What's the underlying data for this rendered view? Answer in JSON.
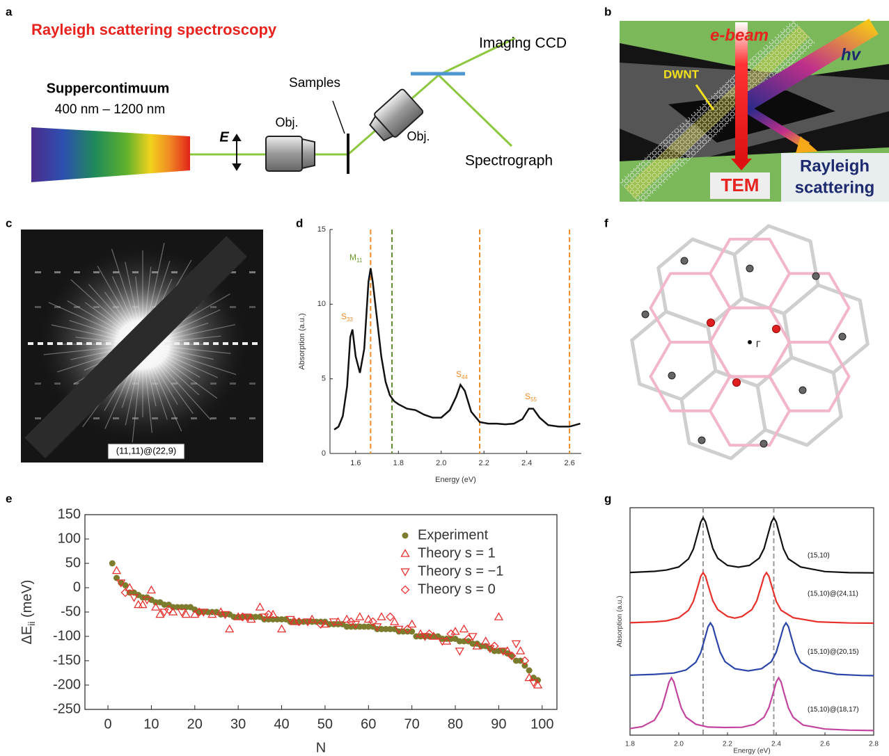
{
  "panels": {
    "a": {
      "label": "a",
      "title": "Rayleigh scattering spectroscopy",
      "source": "Suppercontimuum",
      "range": "400 nm – 1200 nm",
      "polarization": "E",
      "objective1": "Obj.",
      "samples": "Samples",
      "objective2": "Obj.",
      "ccd": "Imaging CCD",
      "spectrograph": "Spectrograph"
    },
    "b": {
      "label": "b",
      "ebeam": "e-beam",
      "hv": "hv",
      "dwnt": "DWNT",
      "tem": "TEM",
      "rayleigh": [
        "Rayleigh",
        "scattering"
      ]
    },
    "c": {
      "label": "c",
      "caption": "(11,11)@(22,9)"
    },
    "f": {
      "label": "f",
      "gamma": "Γ"
    }
  },
  "chart_data": [
    {
      "type": "line",
      "panel": "d",
      "x_label": "Energy (eV)",
      "y_label": "Absorption (a.u.)",
      "color": "#111111",
      "xlim": [
        1.48,
        2.655
      ],
      "ylim": [
        0,
        15
      ],
      "xticks": [
        1.6,
        1.8,
        {
          "value": 2,
          "label": "2.0"
        },
        2.2,
        2.4,
        2.6
      ],
      "yticks": [
        0,
        5,
        10,
        15
      ],
      "x": [
        1.5,
        1.52,
        1.54,
        1.56,
        1.575,
        1.585,
        1.6,
        1.62,
        1.64,
        1.66,
        1.67,
        1.68,
        1.7,
        1.72,
        1.74,
        1.76,
        1.78,
        1.8,
        1.84,
        1.88,
        1.92,
        1.96,
        2.0,
        2.04,
        2.07,
        2.09,
        2.11,
        2.14,
        2.18,
        2.22,
        2.26,
        2.3,
        2.34,
        2.38,
        2.41,
        2.43,
        2.46,
        2.5,
        2.55,
        2.6,
        2.65
      ],
      "values": [
        1.6,
        1.8,
        2.5,
        4.5,
        7.8,
        8.3,
        6.5,
        5.4,
        7.0,
        11.5,
        12.4,
        11.5,
        9.0,
        6.5,
        4.8,
        3.9,
        3.5,
        3.3,
        3.0,
        2.9,
        2.6,
        2.4,
        2.4,
        2.9,
        3.8,
        4.6,
        4.2,
        2.8,
        2.1,
        2.0,
        2.0,
        1.95,
        2.0,
        2.3,
        3.0,
        3.0,
        2.4,
        1.9,
        1.8,
        1.8,
        2.0
      ],
      "vlines": [
        {
          "x": 1.67,
          "color": "#f08a24"
        },
        {
          "x": 1.77,
          "color": "#5e8a2e"
        },
        {
          "x": 2.18,
          "color": "#f08a24"
        },
        {
          "x": 2.6,
          "color": "#f08a24"
        }
      ],
      "annotations": [
        {
          "text": "S",
          "sub": "33",
          "color": "#f08a24"
        },
        {
          "text": "M",
          "sub": "11",
          "color": "#6a9a2e"
        },
        {
          "text": "S",
          "sub": "44",
          "color": "#f08a24"
        },
        {
          "text": "S",
          "sub": "55",
          "color": "#f08a24"
        }
      ]
    },
    {
      "type": "scatter",
      "panel": "e",
      "x_label": "N",
      "y_label": "ΔE",
      "y_label_sub": "ii",
      "y_label_unit": " (meV)",
      "xlim": [
        -5.3,
        103.4
      ],
      "ylim": [
        -250,
        150
      ],
      "xticks": [
        0,
        10,
        20,
        30,
        40,
        50,
        60,
        70,
        80,
        90,
        100
      ],
      "yticks": [
        -250,
        -200,
        -150,
        -100,
        -50,
        0,
        50,
        100,
        150
      ],
      "legend": "upper right",
      "series": [
        {
          "name": "Experiment",
          "color": "#7b7c2d",
          "marker": "circle",
          "x": [
            1,
            2,
            3,
            4,
            5,
            6,
            7,
            8,
            9,
            10,
            11,
            12,
            13,
            14,
            15,
            16,
            17,
            18,
            19,
            20,
            21,
            22,
            23,
            24,
            25,
            26,
            27,
            28,
            29,
            30,
            31,
            32,
            33,
            34,
            35,
            36,
            37,
            38,
            39,
            40,
            41,
            42,
            43,
            44,
            45,
            46,
            47,
            48,
            49,
            50,
            51,
            52,
            53,
            54,
            55,
            56,
            57,
            58,
            59,
            60,
            61,
            62,
            63,
            64,
            65,
            66,
            67,
            68,
            69,
            70,
            71,
            72,
            73,
            74,
            75,
            76,
            77,
            78,
            79,
            80,
            81,
            82,
            83,
            84,
            85,
            86,
            87,
            88,
            89,
            90,
            91,
            92,
            93,
            94,
            95,
            96,
            97,
            98,
            99
          ],
          "values": [
            50,
            20,
            10,
            5,
            -10,
            -10,
            -15,
            -20,
            -20,
            -25,
            -30,
            -30,
            -35,
            -35,
            -40,
            -40,
            -40,
            -40,
            -40,
            -45,
            -50,
            -50,
            -50,
            -50,
            -50,
            -55,
            -55,
            -55,
            -60,
            -60,
            -60,
            -60,
            -60,
            -60,
            -60,
            -65,
            -65,
            -65,
            -65,
            -65,
            -65,
            -70,
            -70,
            -70,
            -70,
            -70,
            -70,
            -70,
            -70,
            -70,
            -75,
            -75,
            -75,
            -75,
            -80,
            -80,
            -80,
            -80,
            -80,
            -80,
            -80,
            -85,
            -85,
            -85,
            -85,
            -85,
            -90,
            -90,
            -90,
            -90,
            -100,
            -100,
            -100,
            -100,
            -100,
            -100,
            -105,
            -105,
            -105,
            -105,
            -110,
            -110,
            -110,
            -115,
            -115,
            -120,
            -120,
            -125,
            -130,
            -130,
            -130,
            -135,
            -140,
            -150,
            -150,
            -160,
            -170,
            -185,
            -190
          ]
        },
        {
          "name": "Theory s = 1",
          "color": "#e8312f",
          "marker": "triangle-up",
          "x": [
            2,
            5,
            7,
            8,
            10,
            11,
            12,
            15,
            18,
            20,
            24,
            26,
            28,
            30,
            33,
            35,
            38,
            40,
            43,
            47,
            50,
            53,
            55,
            58,
            60,
            63,
            66,
            70,
            72,
            75,
            78,
            80,
            82,
            85,
            87,
            90,
            92,
            95,
            97,
            99
          ],
          "values": [
            35,
            0,
            -35,
            -35,
            -5,
            -40,
            -55,
            -50,
            -55,
            -55,
            -55,
            -50,
            -85,
            -60,
            -65,
            -40,
            -55,
            -85,
            -70,
            -65,
            -75,
            -70,
            -65,
            -60,
            -65,
            -60,
            -70,
            -75,
            -95,
            -100,
            -110,
            -90,
            -85,
            -120,
            -110,
            -60,
            -130,
            -130,
            -185,
            -200
          ]
        },
        {
          "name": "Theory s = −1",
          "color": "#e8312f",
          "marker": "triangle-down",
          "x": [
            3,
            6,
            9,
            13,
            17,
            22,
            27,
            32,
            36,
            42,
            46,
            52,
            57,
            62,
            67,
            73,
            77,
            81,
            84,
            88,
            91,
            94,
            98
          ],
          "values": [
            10,
            -20,
            -25,
            -50,
            -50,
            -50,
            -55,
            -60,
            -60,
            -65,
            -70,
            -70,
            -75,
            -80,
            -85,
            -100,
            -110,
            -130,
            -100,
            -125,
            -130,
            -115,
            -195
          ]
        },
        {
          "name": "Theory s = 0",
          "color": "#e8312f",
          "marker": "diamond",
          "x": [
            4,
            14,
            21,
            31,
            37,
            44,
            49,
            56,
            61,
            65,
            69,
            74,
            79,
            83,
            89,
            93,
            96
          ],
          "values": [
            -10,
            -45,
            -50,
            -60,
            -55,
            -70,
            -75,
            -70,
            -70,
            -60,
            -85,
            -95,
            -95,
            -105,
            -120,
            -140,
            -150
          ]
        }
      ]
    },
    {
      "type": "line",
      "panel": "g",
      "x_label": "Energy (eV)",
      "y_label": "Absorption (a.u.)",
      "xlim": [
        1.8,
        2.8
      ],
      "ylim": [
        -0.1,
        10.3
      ],
      "xticks": [
        1.8,
        {
          "value": 2,
          "label": "2.0"
        },
        2.2,
        2.4,
        2.6,
        2.8
      ],
      "vlines": [
        {
          "x": 2.1,
          "color": "#999999"
        },
        {
          "x": 2.39,
          "color": "#999999"
        }
      ],
      "series": [
        {
          "name": "(15,10)",
          "color": "#111111",
          "x": [
            1.8,
            1.9,
            1.95,
            2.0,
            2.04,
            2.06,
            2.08,
            2.09,
            2.1,
            2.11,
            2.12,
            2.14,
            2.16,
            2.2,
            2.245,
            2.29,
            2.33,
            2.35,
            2.37,
            2.38,
            2.39,
            2.4,
            2.41,
            2.43,
            2.45,
            2.5,
            2.6,
            2.7,
            2.8
          ],
          "values": [
            7.34,
            7.39,
            7.45,
            7.59,
            7.96,
            8.41,
            9.22,
            9.64,
            9.84,
            9.65,
            9.23,
            8.43,
            7.99,
            7.66,
            7.58,
            7.66,
            7.99,
            8.43,
            9.23,
            9.64,
            9.84,
            9.65,
            9.23,
            8.41,
            7.96,
            7.59,
            7.38,
            7.33,
            7.32
          ]
        },
        {
          "name": "(15,10)@(24,11)",
          "color": "#e8302a",
          "x": [
            1.8,
            1.9,
            1.95,
            2.0,
            2.04,
            2.06,
            2.08,
            2.09,
            2.1,
            2.11,
            2.12,
            2.14,
            2.16,
            2.2,
            2.23,
            2.26,
            2.3,
            2.32,
            2.34,
            2.35,
            2.36,
            2.37,
            2.38,
            2.4,
            2.42,
            2.47,
            2.57,
            2.7,
            2.8
          ],
          "values": [
            5.04,
            5.08,
            5.13,
            5.27,
            5.61,
            6.02,
            6.76,
            7.16,
            7.33,
            7.16,
            6.77,
            6.04,
            5.64,
            5.33,
            5.25,
            5.33,
            5.64,
            6.04,
            6.77,
            7.16,
            7.33,
            7.16,
            6.77,
            6.02,
            5.61,
            5.27,
            5.08,
            5.03,
            5.02
          ]
        },
        {
          "name": "(15,10)@(20,15)",
          "color": "#2b46a8",
          "x": [
            1.8,
            1.9,
            1.98,
            2.03,
            2.07,
            2.09,
            2.11,
            2.12,
            2.13,
            2.14,
            2.15,
            2.17,
            2.19,
            2.23,
            2.285,
            2.34,
            2.38,
            2.4,
            2.42,
            2.43,
            2.44,
            2.45,
            2.46,
            2.48,
            2.5,
            2.55,
            2.65,
            2.75,
            2.8
          ],
          "values": [
            2.64,
            2.68,
            2.74,
            2.88,
            3.23,
            3.67,
            4.44,
            4.85,
            5.03,
            4.86,
            4.45,
            3.69,
            3.26,
            2.94,
            2.84,
            2.94,
            3.26,
            3.69,
            4.45,
            4.85,
            5.03,
            4.86,
            4.45,
            3.67,
            3.23,
            2.88,
            2.68,
            2.63,
            2.62
          ]
        },
        {
          "name": "(15,10)@(18,17)",
          "color": "#c2449e",
          "x": [
            1.8,
            1.85,
            1.9,
            1.93,
            1.95,
            1.96,
            1.97,
            1.98,
            1.99,
            2.01,
            2.03,
            2.07,
            2.12,
            2.19,
            2.26,
            2.31,
            2.35,
            2.37,
            2.39,
            2.4,
            2.41,
            2.42,
            2.43,
            2.45,
            2.47,
            2.51,
            2.6,
            2.7,
            2.8
          ],
          "values": [
            0.2,
            0.29,
            0.58,
            1.14,
            1.91,
            2.32,
            2.52,
            2.33,
            1.92,
            1.15,
            0.72,
            0.4,
            0.27,
            0.25,
            0.26,
            0.39,
            0.72,
            1.16,
            1.92,
            2.33,
            2.52,
            2.33,
            1.91,
            1.14,
            0.71,
            0.36,
            0.18,
            0.13,
            0.11
          ]
        }
      ]
    }
  ]
}
